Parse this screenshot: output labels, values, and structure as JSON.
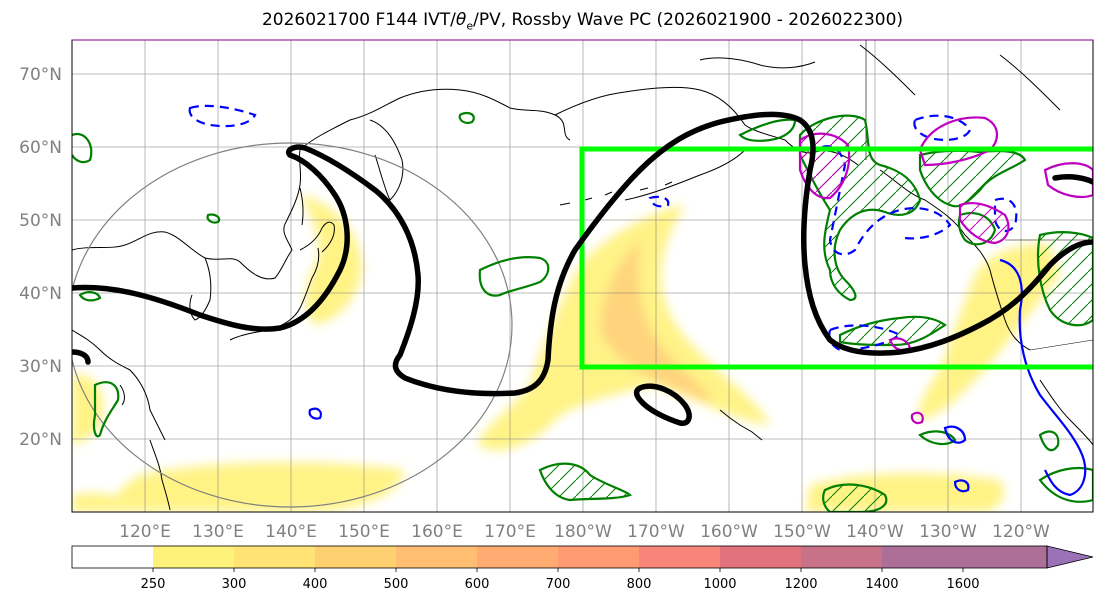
{
  "title": "2026021700 F144 IVT/θe/PV, Rossby Wave PC (2026021900 - 2026022300)",
  "title_parts": {
    "prefix": "2026021700 F144 IVT/",
    "theta": "θ",
    "sub": "e",
    "suffix": "/PV, Rossby Wave PC (2026021900 - 2026022300)"
  },
  "map": {
    "projection": "plate-carree",
    "lon_range": [
      110,
      250
    ],
    "lat_range": [
      10,
      75
    ],
    "lat_labels": [
      "20°N",
      "30°N",
      "40°N",
      "50°N",
      "60°N",
      "70°N"
    ],
    "lon_labels": [
      "120°E",
      "130°E",
      "140°E",
      "150°E",
      "160°E",
      "170°E",
      "180°W",
      "170°W",
      "160°W",
      "150°W",
      "140°W",
      "130°W",
      "120°W"
    ],
    "gridlines": true,
    "highlight_box": {
      "lon": [
        180,
        250
      ],
      "lat": [
        30,
        60
      ],
      "color": "#00ff00"
    },
    "colors": {
      "coast": "#000000",
      "wave_contour": "#000000",
      "green_contour": "#008000",
      "blue_contour": "#0000ff",
      "magenta_contour": "#c000c0",
      "grid": "#808080"
    }
  },
  "colorbar": {
    "labels": [
      "250",
      "300",
      "400",
      "500",
      "600",
      "700",
      "800",
      "1000",
      "1200",
      "1400",
      "1600"
    ],
    "colors": [
      "#ffffff",
      "#fff27a",
      "#ffe374",
      "#ffd06f",
      "#ffbe72",
      "#ffab72",
      "#ff9a72",
      "#f7857a",
      "#e2737e",
      "#c87288",
      "#ab6f98",
      "#9b72b8"
    ],
    "extend": "max"
  }
}
